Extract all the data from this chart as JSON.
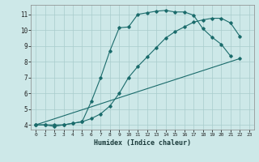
{
  "xlabel": "Humidex (Indice chaleur)",
  "bg_color": "#cde8e8",
  "grid_color": "#a8cccc",
  "line_color": "#1a6b6b",
  "xlim": [
    -0.5,
    23.5
  ],
  "ylim": [
    3.7,
    11.6
  ],
  "xticks": [
    0,
    1,
    2,
    3,
    4,
    5,
    6,
    7,
    8,
    9,
    10,
    11,
    12,
    13,
    14,
    15,
    16,
    17,
    18,
    19,
    20,
    21,
    22,
    23
  ],
  "yticks": [
    4,
    5,
    6,
    7,
    8,
    9,
    10,
    11
  ],
  "line1_x": [
    0,
    1,
    2,
    3,
    4,
    5,
    6,
    7,
    8,
    9,
    10,
    11,
    12,
    13,
    14,
    15,
    16,
    17,
    18,
    19,
    20,
    21,
    22
  ],
  "line1_y": [
    4.0,
    4.0,
    4.0,
    4.0,
    4.1,
    4.2,
    4.4,
    4.7,
    5.2,
    6.0,
    7.0,
    7.7,
    8.3,
    8.9,
    9.5,
    9.9,
    10.2,
    10.5,
    10.65,
    10.75,
    10.75,
    10.45,
    9.6
  ],
  "line2_x": [
    0,
    1,
    2,
    3,
    4,
    5,
    6,
    7,
    8,
    9,
    10,
    11,
    12,
    13,
    14,
    15,
    16,
    17,
    18,
    19,
    20,
    21
  ],
  "line2_y": [
    4.0,
    4.0,
    3.9,
    4.0,
    4.1,
    4.2,
    5.5,
    7.0,
    8.7,
    10.15,
    10.2,
    11.0,
    11.1,
    11.2,
    11.25,
    11.15,
    11.15,
    10.95,
    10.1,
    9.55,
    9.1,
    8.35
  ],
  "line3_x": [
    0,
    22
  ],
  "line3_y": [
    4.0,
    8.2
  ]
}
